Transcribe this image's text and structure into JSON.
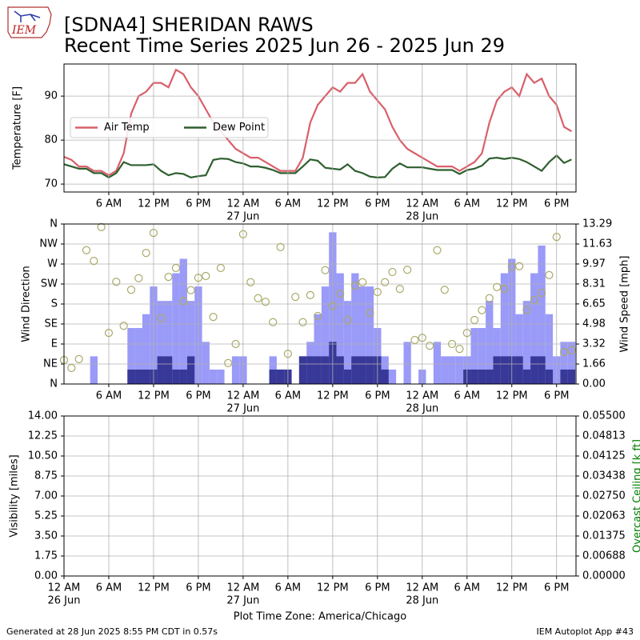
{
  "header": {
    "title": "[SDNA4] SHERIDAN RAWS",
    "subtitle": "Recent Time Series 2025 Jun 26 - 2025 Jun 29",
    "logo": "IEM"
  },
  "footer": {
    "generated": "Generated at 28 Jun 2025 8:55 PM CDT in 0.57s",
    "app": "IEM Autoplot App #43"
  },
  "chart_data": [
    {
      "type": "line",
      "ylabel": "Temperature [F]",
      "grid": true,
      "legend": "center left",
      "xlim": [
        0,
        68.6
      ],
      "ylim": [
        68.2,
        97.3
      ],
      "yticks": [
        70,
        80,
        90
      ],
      "xticks": [
        {
          "value": 6,
          "label": "6 AM"
        },
        {
          "value": 12,
          "label": "12 PM"
        },
        {
          "value": 18,
          "label": "6 PM"
        },
        {
          "value": 24,
          "label": "12 AM",
          "sublabel": "27 Jun"
        },
        {
          "value": 30,
          "label": "6 AM"
        },
        {
          "value": 36,
          "label": "12 PM"
        },
        {
          "value": 42,
          "label": "6 PM"
        },
        {
          "value": 48,
          "label": "12 AM",
          "sublabel": "28 Jun"
        },
        {
          "value": 54,
          "label": "6 AM"
        },
        {
          "value": 60,
          "label": "12 PM"
        },
        {
          "value": 66,
          "label": "6 PM"
        }
      ],
      "x": [
        0,
        1,
        2,
        3,
        4,
        5,
        6,
        7,
        8,
        9,
        10,
        11,
        12,
        13,
        14,
        15,
        16,
        17,
        18,
        19,
        20,
        21,
        22,
        23,
        24,
        25,
        26,
        27,
        28,
        29,
        30,
        31,
        32,
        33,
        34,
        35,
        36,
        37,
        38,
        39,
        40,
        41,
        42,
        43,
        44,
        45,
        46,
        47,
        48,
        49,
        50,
        51,
        52,
        53,
        54,
        55,
        56,
        57,
        58,
        59,
        60,
        61,
        62,
        63,
        64,
        65,
        66,
        67,
        68
      ],
      "series": [
        {
          "name": "Air Temp",
          "color": "#d9606a",
          "type": "line",
          "values": [
            76.2,
            75.5,
            74,
            74,
            73,
            73,
            72,
            73,
            77,
            86,
            90,
            91,
            93,
            93,
            92,
            96,
            95,
            92,
            90,
            87,
            84,
            82,
            80,
            78,
            77,
            76,
            76,
            75,
            74,
            73,
            73,
            73,
            76,
            84,
            88,
            90,
            92,
            91,
            93,
            93,
            95,
            91,
            89,
            87,
            83,
            80,
            78,
            77,
            76,
            75,
            74,
            74,
            74,
            73,
            74,
            75,
            77,
            84,
            89,
            91,
            92,
            90,
            95,
            93,
            94,
            90,
            88,
            83,
            82
          ]
        },
        {
          "name": "Dew Point",
          "color": "#2f5f2f",
          "type": "line",
          "values": [
            74.5,
            74,
            73.5,
            73.5,
            72.5,
            72.5,
            71.5,
            72.5,
            75,
            74.3,
            74.3,
            74.3,
            74.5,
            73,
            72,
            72.5,
            72.3,
            71.5,
            71.8,
            72,
            75.5,
            75.8,
            75.7,
            75,
            74.7,
            74,
            74,
            73.7,
            73.2,
            72.5,
            72.5,
            72.5,
            74,
            75.6,
            75.3,
            73.7,
            73.5,
            73.3,
            74.5,
            73,
            72.5,
            71.7,
            71.5,
            71.6,
            73.5,
            74.7,
            73.8,
            73.8,
            73.8,
            73.5,
            73.2,
            73.2,
            73.2,
            72.3,
            73.2,
            73.5,
            74.2,
            75.8,
            76,
            75.7,
            76,
            75.7,
            75,
            74,
            73,
            75,
            76.5,
            74.8,
            75.6
          ]
        }
      ]
    },
    {
      "type": "bar",
      "ylabel": "Wind Direction",
      "y2label": "Wind Speed [mph]",
      "grid": true,
      "xlim": [
        0,
        68.6
      ],
      "ylim": [
        0,
        360
      ],
      "yticks": [
        {
          "value": 0,
          "label": "N"
        },
        {
          "value": 45,
          "label": "NE"
        },
        {
          "value": 90,
          "label": "E"
        },
        {
          "value": 135,
          "label": "SE"
        },
        {
          "value": 180,
          "label": "S"
        },
        {
          "value": 225,
          "label": "SW"
        },
        {
          "value": 270,
          "label": "W"
        },
        {
          "value": 315,
          "label": "NW"
        },
        {
          "value": 360,
          "label": "N"
        }
      ],
      "y2lim": [
        0,
        13.29
      ],
      "y2ticks": [
        {
          "value": 0,
          "label": "0.00"
        },
        1.66,
        3.32,
        4.98,
        6.65,
        8.31,
        9.97,
        11.63,
        13.29
      ],
      "xticks": [
        {
          "value": 6,
          "label": "6 AM"
        },
        {
          "value": 12,
          "label": "12 PM"
        },
        {
          "value": 18,
          "label": "6 PM"
        },
        {
          "value": 24,
          "label": "12 AM",
          "sublabel": "27 Jun"
        },
        {
          "value": 30,
          "label": "6 AM"
        },
        {
          "value": 36,
          "label": "12 PM"
        },
        {
          "value": 42,
          "label": "6 PM"
        },
        {
          "value": 48,
          "label": "12 AM",
          "sublabel": "28 Jun"
        },
        {
          "value": 54,
          "label": "6 AM"
        },
        {
          "value": 60,
          "label": "12 PM"
        },
        {
          "value": 66,
          "label": "6 PM"
        }
      ],
      "x": [
        0,
        1,
        2,
        3,
        4,
        5,
        6,
        7,
        8,
        9,
        10,
        11,
        12,
        13,
        14,
        15,
        16,
        17,
        18,
        19,
        20,
        21,
        22,
        23,
        24,
        25,
        26,
        27,
        28,
        29,
        30,
        31,
        32,
        33,
        34,
        35,
        36,
        37,
        38,
        39,
        40,
        41,
        42,
        43,
        44,
        45,
        46,
        47,
        48,
        49,
        50,
        51,
        52,
        53,
        54,
        55,
        56,
        57,
        58,
        59,
        60,
        61,
        62,
        63,
        64,
        65,
        66,
        67,
        68
      ],
      "series": [
        {
          "type": "bar",
          "axis": "y2",
          "color": "#9a9af8",
          "values": [
            0,
            0,
            0,
            0,
            2.3,
            0,
            0,
            0,
            0,
            4.65,
            4.65,
            5.8,
            8.1,
            6.9,
            6.9,
            9.2,
            10.4,
            6.9,
            8.1,
            3.5,
            1.2,
            1.2,
            0,
            2.3,
            2.3,
            0,
            0,
            0,
            2.3,
            1.2,
            1.2,
            0,
            2.3,
            3.5,
            5.8,
            8.1,
            12.6,
            9.2,
            6.9,
            9.2,
            8.1,
            8.1,
            4.65,
            2.3,
            1.2,
            0,
            3.5,
            0,
            1.2,
            0,
            3.5,
            2.3,
            2.3,
            2.3,
            2.3,
            4.65,
            4.65,
            6.9,
            4.65,
            9.2,
            10.4,
            5.8,
            6.9,
            9.2,
            11.5,
            5.8,
            2.3,
            3.5,
            3.5
          ]
        },
        {
          "type": "bar",
          "axis": "y2",
          "color": "#383898",
          "values": [
            0,
            0,
            0,
            0,
            0,
            0,
            0,
            0,
            0,
            1.2,
            1.2,
            1.2,
            1.2,
            2.3,
            2.3,
            1.2,
            1.2,
            2.3,
            0,
            0,
            0,
            0,
            0,
            0,
            0,
            0,
            0,
            0,
            1.2,
            1.2,
            1.2,
            0,
            2.3,
            2.3,
            2.3,
            2.3,
            3.5,
            2.3,
            1.2,
            2.3,
            2.3,
            2.3,
            2.3,
            1.2,
            0,
            0,
            0,
            0,
            0,
            0,
            0,
            0,
            0,
            0,
            1.2,
            1.2,
            1.2,
            1.2,
            2.3,
            2.3,
            2.3,
            2.3,
            1.2,
            2.3,
            2.3,
            1.2,
            0,
            1.2,
            1.2
          ]
        },
        {
          "type": "scatter",
          "color": "#aaaa6a",
          "values": [
            54,
            36,
            56,
            301,
            277,
            353,
            115,
            230,
            131,
            212,
            238,
            295,
            340,
            148,
            241,
            261,
            187,
            211,
            239,
            243,
            151,
            261,
            47,
            90,
            337,
            229,
            193,
            185,
            139,
            308,
            68,
            196,
            139,
            200,
            153,
            256,
            176,
            203,
            144,
            221,
            229,
            160,
            207,
            229,
            252,
            214,
            257,
            99,
            104,
            86,
            301,
            212,
            90,
            79,
            115,
            144,
            166,
            193,
            218,
            214,
            263,
            265,
            166,
            189,
            205,
            245,
            331,
            72,
            76
          ]
        }
      ]
    },
    {
      "type": "line",
      "ylabel": "Visibility [miles]",
      "y2label": "Overcast Ceiling [k ft]",
      "y2color": "#008000",
      "grid": true,
      "xlabel": "Plot Time Zone: America/Chicago",
      "xlim": [
        0,
        68.6
      ],
      "ylim": [
        0,
        14
      ],
      "yticks": [
        {
          "value": 0,
          "label": "0.00"
        },
        {
          "value": 1.75,
          "label": "1.75"
        },
        {
          "value": 3.5,
          "label": "3.50"
        },
        {
          "value": 5.25,
          "label": "5.25"
        },
        {
          "value": 7,
          "label": "7.00"
        },
        {
          "value": 8.75,
          "label": "8.75"
        },
        {
          "value": 10.5,
          "label": "10.50"
        },
        {
          "value": 12.25,
          "label": "12.25"
        },
        {
          "value": 14,
          "label": "14.00"
        }
      ],
      "y2lim": [
        0,
        0.055
      ],
      "y2ticks": [
        {
          "value": 0,
          "label": "0.00000"
        },
        {
          "value": 0.006875,
          "label": "0.00688"
        },
        {
          "value": 0.01375,
          "label": "0.01375"
        },
        {
          "value": 0.020625,
          "label": "0.02063"
        },
        {
          "value": 0.0275,
          "label": "0.02750"
        },
        {
          "value": 0.034375,
          "label": "0.03438"
        },
        {
          "value": 0.04125,
          "label": "0.04125"
        },
        {
          "value": 0.048125,
          "label": "0.04813"
        },
        {
          "value": 0.055,
          "label": "0.05500"
        }
      ],
      "xticks": [
        {
          "value": 0,
          "label": "12 AM",
          "sublabel": "26 Jun"
        },
        {
          "value": 6,
          "label": "6 AM"
        },
        {
          "value": 12,
          "label": "12 PM"
        },
        {
          "value": 18,
          "label": "6 PM"
        },
        {
          "value": 24,
          "label": "12 AM",
          "sublabel": "27 Jun"
        },
        {
          "value": 30,
          "label": "6 AM"
        },
        {
          "value": 36,
          "label": "12 PM"
        },
        {
          "value": 42,
          "label": "6 PM"
        },
        {
          "value": 48,
          "label": "12 AM",
          "sublabel": "28 Jun"
        },
        {
          "value": 54,
          "label": "6 AM"
        },
        {
          "value": 60,
          "label": "12 PM"
        },
        {
          "value": 66,
          "label": "6 PM"
        }
      ],
      "series": []
    }
  ]
}
